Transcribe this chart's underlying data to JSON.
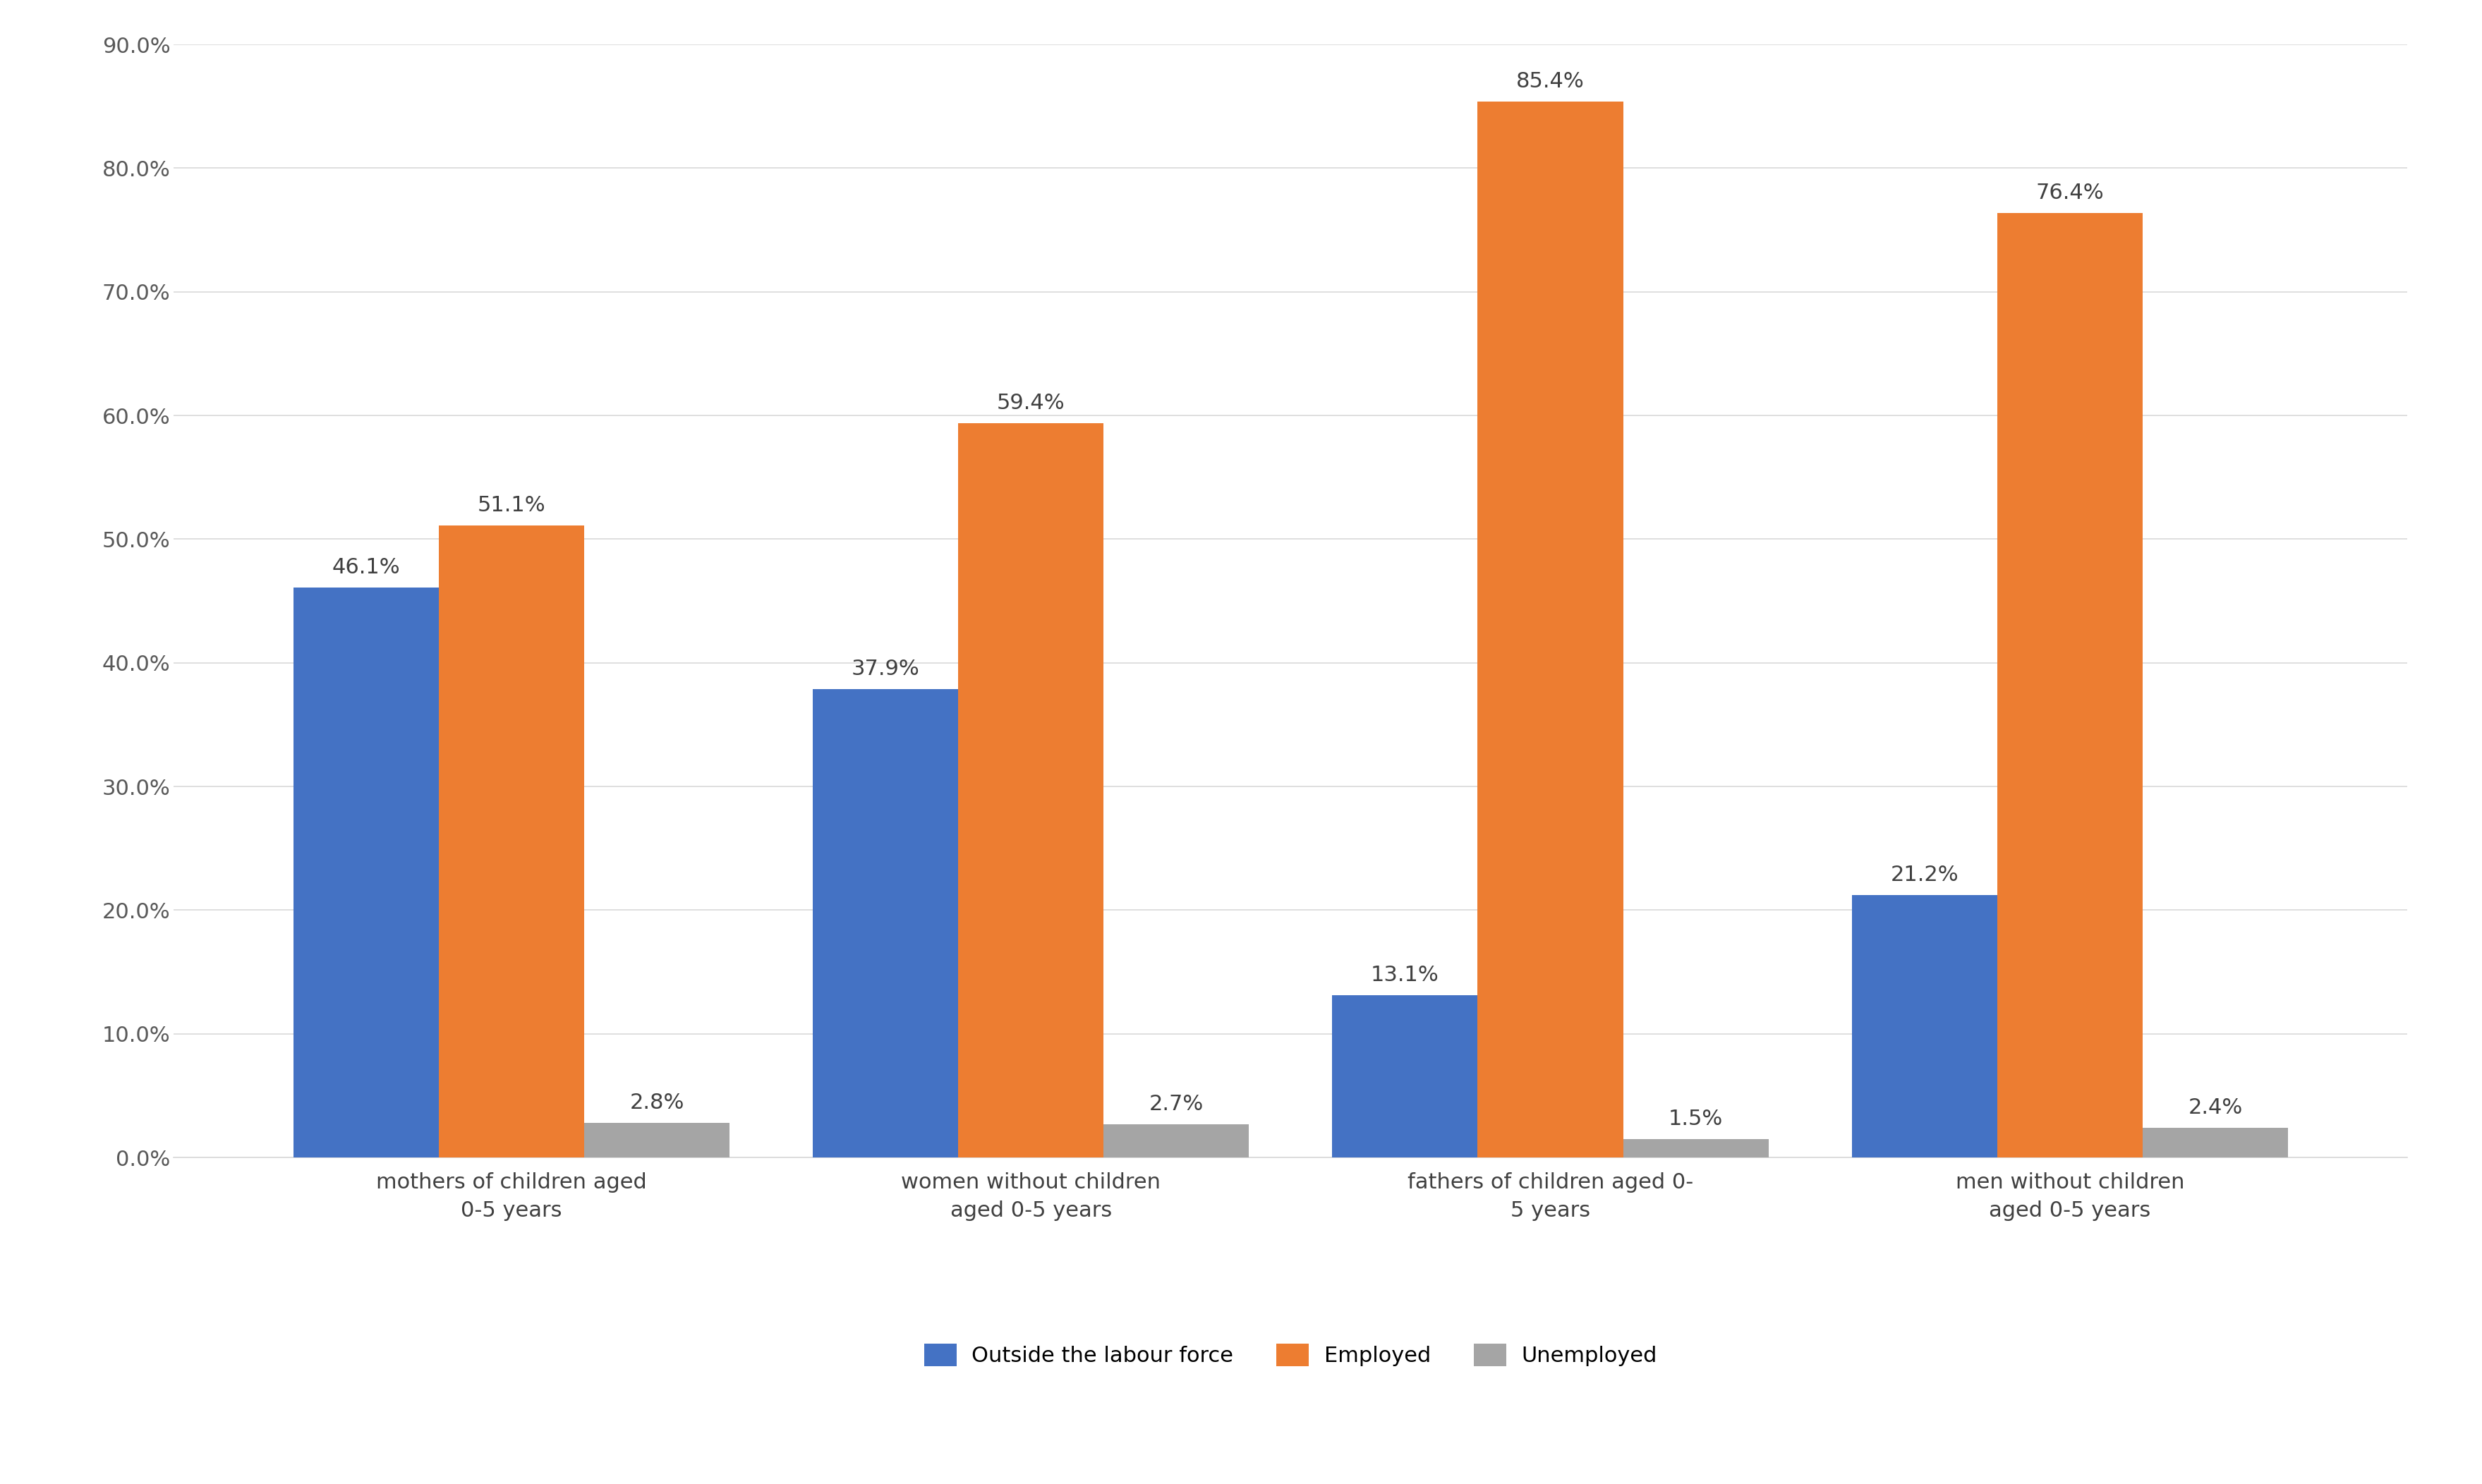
{
  "categories": [
    "mothers of children aged\n0-5 years",
    "women without children\naged 0-5 years",
    "fathers of children aged 0-\n5 years",
    "men without children\naged 0-5 years"
  ],
  "series": [
    {
      "name": "Outside the labour force",
      "values": [
        46.1,
        37.9,
        13.1,
        21.2
      ],
      "color": "#4472c4"
    },
    {
      "name": "Employed",
      "values": [
        51.1,
        59.4,
        85.4,
        76.4
      ],
      "color": "#ed7d31"
    },
    {
      "name": "Unemployed",
      "values": [
        2.8,
        2.7,
        1.5,
        2.4
      ],
      "color": "#a5a5a5"
    }
  ],
  "ylim": [
    0,
    90
  ],
  "yticks": [
    0,
    10,
    20,
    30,
    40,
    50,
    60,
    70,
    80,
    90
  ],
  "ytick_labels": [
    "0.0%",
    "10.0%",
    "20.0%",
    "30.0%",
    "40.0%",
    "50.0%",
    "60.0%",
    "70.0%",
    "80.0%",
    "90.0%"
  ],
  "background_color": "#ffffff",
  "grid_color": "#d9d9d9",
  "bar_width": 0.28,
  "label_fontsize": 22,
  "tick_fontsize": 22,
  "legend_fontsize": 22,
  "value_fontsize": 22
}
